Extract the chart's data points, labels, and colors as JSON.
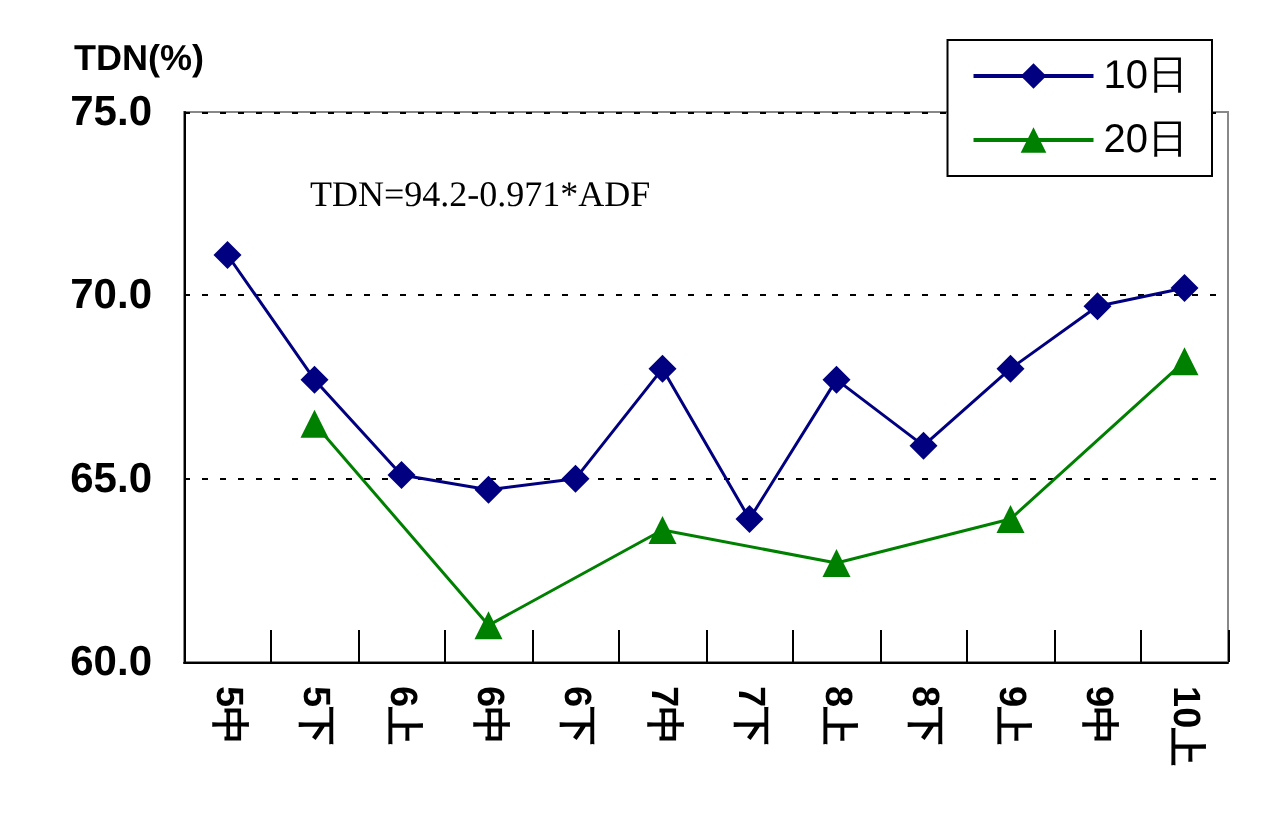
{
  "chart_data": {
    "type": "line",
    "ylabel": "TDN(%)",
    "annotations": [
      "TDN=94.2-0.971*ADF"
    ],
    "categories": [
      "5中",
      "5下",
      "6上",
      "6中",
      "6下",
      "7中",
      "7下",
      "8上",
      "8下",
      "9上",
      "9中",
      "10上"
    ],
    "series": [
      {
        "name": "10日",
        "color": "#000080",
        "marker": "diamond",
        "values": [
          71.1,
          67.7,
          65.1,
          64.7,
          65.0,
          68.0,
          63.9,
          67.7,
          65.9,
          68.0,
          69.7,
          70.2
        ]
      },
      {
        "name": "20日",
        "color": "#008000",
        "marker": "triangle",
        "values": [
          null,
          66.5,
          null,
          61.0,
          null,
          63.6,
          null,
          62.7,
          null,
          63.9,
          null,
          68.2
        ]
      }
    ],
    "ylim": [
      60,
      75
    ],
    "yticks": [
      {
        "value": 60,
        "label": "60.0"
      },
      {
        "value": 65,
        "label": "65.0"
      },
      {
        "value": 70,
        "label": "70.0"
      },
      {
        "value": 75,
        "label": "75.0"
      }
    ],
    "grid": "y",
    "legend": "top right",
    "line_style": "solid"
  }
}
